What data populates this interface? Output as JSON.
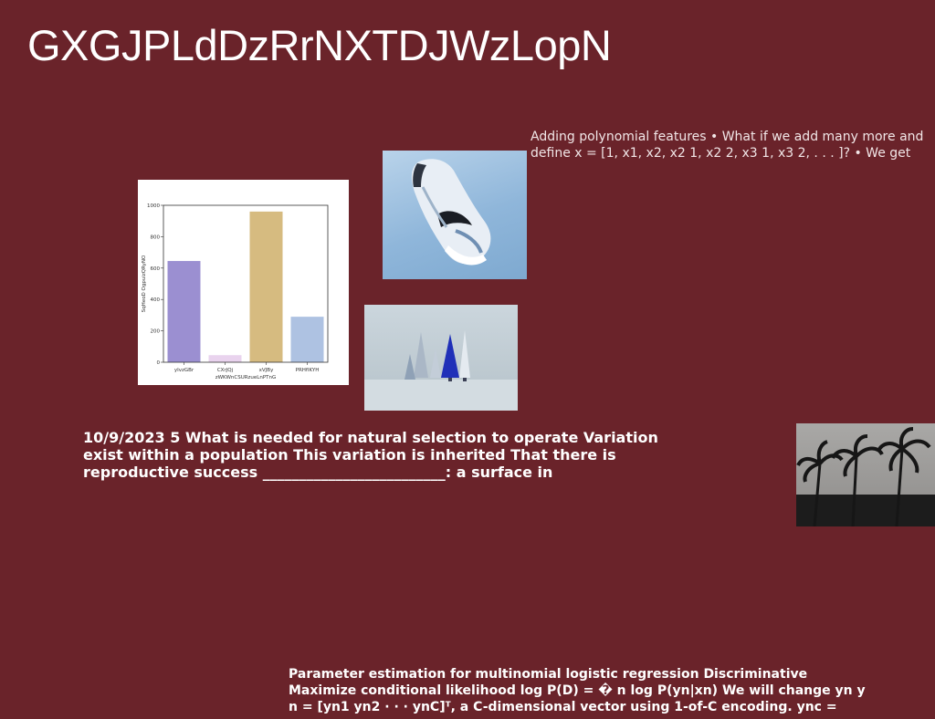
{
  "title": "GXGJPLdDzRrNXTDJWzLopN",
  "text_blocks": {
    "polynomial": "Adding polynomial features • What if we add many more and define x = [1, x1, x2, x2 1, x2 2, x3 1, x3 2, . . . ]? • We get",
    "selection": "10/9/2023 5 What is needed for natural selection to operate Variation exist within a population This variation is inherited That there is reproductive success _________________________: a surface in",
    "parameter": "Parameter estimation for multinomial logistic regression Discriminative Maximize conditional likelihood log P(D) = � n log P(yn|xn) We will change yn y n = [yn1 yn2 · · · ynC]ᵀ, a C-dimensional vector using 1-of-C encoding. ync ="
  },
  "images": {
    "sneaker": "sneaker-photo",
    "trees": "miniature-trees-photo",
    "palms": "palm-trees-photo"
  },
  "chart_data": {
    "type": "bar",
    "categories": [
      "yIvzGBr",
      "CXrJQj",
      "xVJBy",
      "PRHfIKYH"
    ],
    "values": [
      645,
      45,
      960,
      290
    ],
    "colors": [
      "#9b8fd1",
      "#e9d3ee",
      "#d6bb80",
      "#aec2e2"
    ],
    "xlabel": "zWKWnCSURzueLnPTnG",
    "ylabel": "SqHeoD OgpuizQRyNO",
    "ylim": [
      0,
      1000
    ],
    "yticks": [
      0,
      200,
      400,
      600,
      800,
      1000
    ],
    "grid": false
  }
}
